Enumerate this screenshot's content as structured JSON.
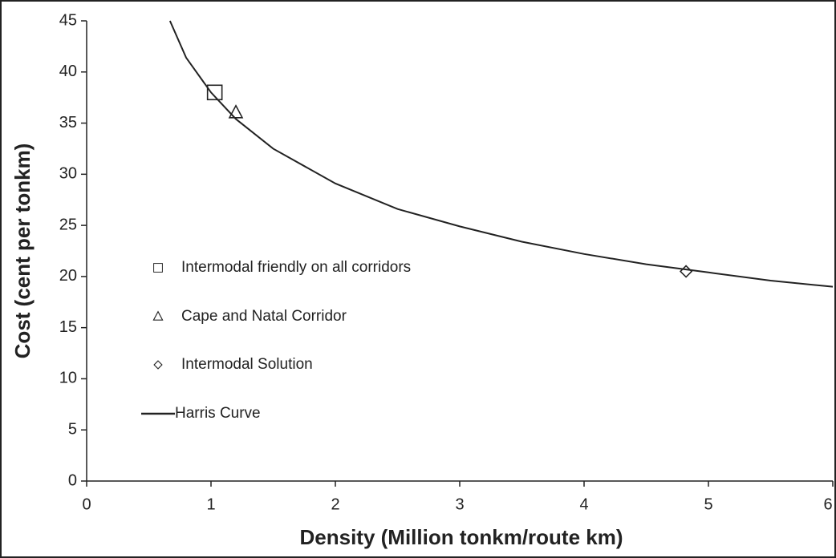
{
  "chart_data": {
    "type": "scatter",
    "xlabel": "Density (Million tonkm/route km)",
    "ylabel": "Cost (cent per tonkm)",
    "xlim": [
      0,
      6
    ],
    "ylim": [
      0,
      45
    ],
    "xticks": [
      0,
      1,
      2,
      3,
      4,
      5,
      6
    ],
    "yticks": [
      0,
      5,
      10,
      15,
      20,
      25,
      30,
      35,
      40,
      45
    ],
    "series": [
      {
        "name": "Intermodal friendly on all corridors",
        "marker": "square",
        "color": "#222222",
        "x": [
          1.03
        ],
        "values": [
          38
        ]
      },
      {
        "name": "Cape and Natal Corridor",
        "marker": "triangle",
        "color": "#222222",
        "x": [
          1.2
        ],
        "values": [
          36
        ]
      },
      {
        "name": "Intermodal Solution",
        "marker": "diamond",
        "color": "#222222",
        "x": [
          4.82
        ],
        "values": [
          20.5
        ]
      },
      {
        "name": "Harris Curve",
        "marker": "line",
        "color": "#222222",
        "x": [
          0.67,
          0.8,
          1,
          1.2,
          1.5,
          2,
          2.5,
          3,
          3.5,
          4,
          4.5,
          5,
          5.5,
          6
        ],
        "values": [
          45,
          41.4,
          38,
          35.4,
          32.5,
          29.1,
          26.6,
          24.9,
          23.4,
          22.2,
          21.2,
          20.4,
          19.6,
          19.0
        ]
      }
    ]
  }
}
